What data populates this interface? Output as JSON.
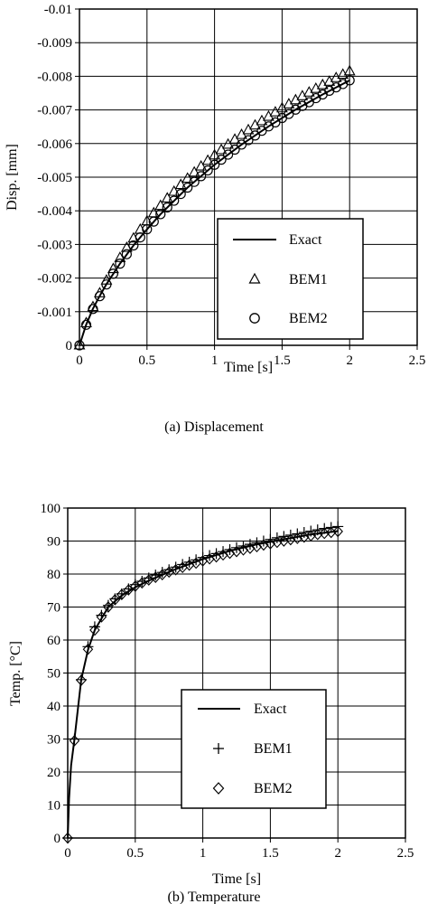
{
  "chart_data": [
    {
      "type": "line",
      "caption": "(a) Displacement",
      "xlabel": "Time [s]",
      "ylabel": "Disp. [mm]",
      "xlim": [
        0,
        2.5
      ],
      "ylim": [
        0,
        -0.01
      ],
      "xticks": [
        "0",
        "0.5",
        "1",
        "1.5",
        "2",
        "2.5"
      ],
      "yticks": [
        "0",
        "-0.001",
        "-0.002",
        "-0.003",
        "-0.004",
        "-0.005",
        "-0.006",
        "-0.007",
        "-0.008",
        "-0.009",
        "-0.01"
      ],
      "grid": true,
      "legend": "bottom-right",
      "series": [
        {
          "name": "Exact",
          "marker": "line",
          "x": [
            0,
            0.05,
            0.1,
            0.15,
            0.2,
            0.3,
            0.4,
            0.5,
            0.6,
            0.8,
            1.0,
            1.2,
            1.4,
            1.6,
            1.8,
            2.0
          ],
          "y": [
            0,
            -0.00062,
            -0.00109,
            -0.00147,
            -0.00182,
            -0.00243,
            -0.00297,
            -0.00345,
            -0.0039,
            -0.00469,
            -0.00537,
            -0.00597,
            -0.00651,
            -0.00701,
            -0.00746,
            -0.00788
          ]
        },
        {
          "name": "BEM1",
          "marker": "triangle",
          "x": [
            0,
            0.05,
            0.1,
            0.15,
            0.2,
            0.25,
            0.3,
            0.35,
            0.4,
            0.45,
            0.5,
            0.55,
            0.6,
            0.65,
            0.7,
            0.75,
            0.8,
            0.85,
            0.9,
            0.95,
            1.0,
            1.05,
            1.1,
            1.15,
            1.2,
            1.25,
            1.3,
            1.35,
            1.4,
            1.45,
            1.5,
            1.55,
            1.6,
            1.65,
            1.7,
            1.75,
            1.8,
            1.85,
            1.9,
            1.95,
            2.0
          ],
          "y": [
            0,
            -0.00066,
            -0.00114,
            -0.00155,
            -0.00193,
            -0.00227,
            -0.0026,
            -0.0029,
            -0.00318,
            -0.00344,
            -0.00369,
            -0.00393,
            -0.00415,
            -0.00437,
            -0.00457,
            -0.00477,
            -0.00496,
            -0.00514,
            -0.00532,
            -0.00549,
            -0.00565,
            -0.00581,
            -0.00597,
            -0.00612,
            -0.00626,
            -0.0064,
            -0.00654,
            -0.00667,
            -0.0068,
            -0.00693,
            -0.00705,
            -0.00717,
            -0.00729,
            -0.00741,
            -0.00752,
            -0.00763,
            -0.00774,
            -0.00784,
            -0.00795,
            -0.00805,
            -0.00815
          ]
        },
        {
          "name": "BEM2",
          "marker": "circle",
          "x": [
            0,
            0.05,
            0.1,
            0.15,
            0.2,
            0.25,
            0.3,
            0.35,
            0.4,
            0.45,
            0.5,
            0.55,
            0.6,
            0.65,
            0.7,
            0.75,
            0.8,
            0.85,
            0.9,
            0.95,
            1.0,
            1.05,
            1.1,
            1.15,
            1.2,
            1.25,
            1.3,
            1.35,
            1.4,
            1.45,
            1.5,
            1.55,
            1.6,
            1.65,
            1.7,
            1.75,
            1.8,
            1.85,
            1.9,
            1.95,
            2.0
          ],
          "y": [
            0,
            -0.00061,
            -0.00108,
            -0.00146,
            -0.00181,
            -0.00213,
            -0.00243,
            -0.00271,
            -0.00297,
            -0.00321,
            -0.00345,
            -0.00368,
            -0.0039,
            -0.0041,
            -0.0043,
            -0.0045,
            -0.00469,
            -0.00486,
            -0.00503,
            -0.0052,
            -0.00537,
            -0.00552,
            -0.00567,
            -0.00582,
            -0.00597,
            -0.0061,
            -0.00624,
            -0.00638,
            -0.00651,
            -0.00663,
            -0.00676,
            -0.00688,
            -0.00701,
            -0.00712,
            -0.00723,
            -0.00735,
            -0.00746,
            -0.00757,
            -0.00767,
            -0.00777,
            -0.00788
          ]
        }
      ]
    },
    {
      "type": "line",
      "caption": "(b) Temperature",
      "xlabel": "Time [s]",
      "ylabel": "Temp. [°C]",
      "xlim": [
        0,
        2.5
      ],
      "ylim": [
        0,
        100
      ],
      "xticks": [
        "0",
        "0.5",
        "1",
        "1.5",
        "2",
        "2.5"
      ],
      "yticks": [
        "0",
        "10",
        "20",
        "30",
        "40",
        "50",
        "60",
        "70",
        "80",
        "90",
        "100"
      ],
      "grid": true,
      "legend": "bottom-right",
      "series": [
        {
          "name": "Exact",
          "marker": "line",
          "x": [
            0,
            0.01,
            0.025,
            0.05,
            0.1,
            0.15,
            0.2,
            0.3,
            0.4,
            0.5,
            0.6,
            0.8,
            1.0,
            1.2,
            1.4,
            1.6,
            1.8,
            2.0
          ],
          "y": [
            0,
            12,
            22,
            30,
            48,
            57,
            63,
            70,
            73.5,
            76,
            78,
            81.5,
            84.5,
            87,
            89,
            90.5,
            92,
            93
          ]
        },
        {
          "name": "BEM1",
          "marker": "plus",
          "x": [
            0,
            0.05,
            0.1,
            0.15,
            0.2,
            0.25,
            0.3,
            0.35,
            0.4,
            0.45,
            0.5,
            0.55,
            0.6,
            0.65,
            0.7,
            0.75,
            0.8,
            0.85,
            0.9,
            0.95,
            1.0,
            1.05,
            1.1,
            1.15,
            1.2,
            1.25,
            1.3,
            1.35,
            1.4,
            1.45,
            1.5,
            1.55,
            1.6,
            1.65,
            1.7,
            1.75,
            1.8,
            1.85,
            1.9,
            1.95,
            2.0
          ],
          "y": [
            0,
            30,
            48,
            58,
            64,
            67.5,
            70.5,
            72.5,
            74,
            75.5,
            76.8,
            77.8,
            78.8,
            79.7,
            80.5,
            81.3,
            82.1,
            82.9,
            83.6,
            84.3,
            85,
            85.6,
            86.2,
            86.8,
            87.4,
            88,
            88.5,
            89,
            89.5,
            90,
            90.5,
            91,
            91.4,
            91.8,
            92.2,
            92.6,
            93,
            93.4,
            93.8,
            94.1,
            94.4
          ]
        },
        {
          "name": "BEM2",
          "marker": "diamond",
          "x": [
            0,
            0.05,
            0.1,
            0.15,
            0.2,
            0.25,
            0.3,
            0.35,
            0.4,
            0.45,
            0.5,
            0.55,
            0.6,
            0.65,
            0.7,
            0.75,
            0.8,
            0.85,
            0.9,
            0.95,
            1.0,
            1.05,
            1.1,
            1.15,
            1.2,
            1.25,
            1.3,
            1.35,
            1.4,
            1.45,
            1.5,
            1.55,
            1.6,
            1.65,
            1.7,
            1.75,
            1.8,
            1.85,
            1.9,
            1.95,
            2.0
          ],
          "y": [
            0,
            29.5,
            47.8,
            57.2,
            63,
            67,
            70,
            72.2,
            73.8,
            75.2,
            76.3,
            77.3,
            78.2,
            79,
            79.8,
            80.6,
            81.3,
            82,
            82.7,
            83.3,
            84,
            84.6,
            85.2,
            85.8,
            86.3,
            86.8,
            87.3,
            87.8,
            88.3,
            88.8,
            89.2,
            89.6,
            90,
            90.4,
            90.8,
            91.2,
            91.6,
            92,
            92.3,
            92.6,
            92.9
          ]
        }
      ]
    }
  ]
}
